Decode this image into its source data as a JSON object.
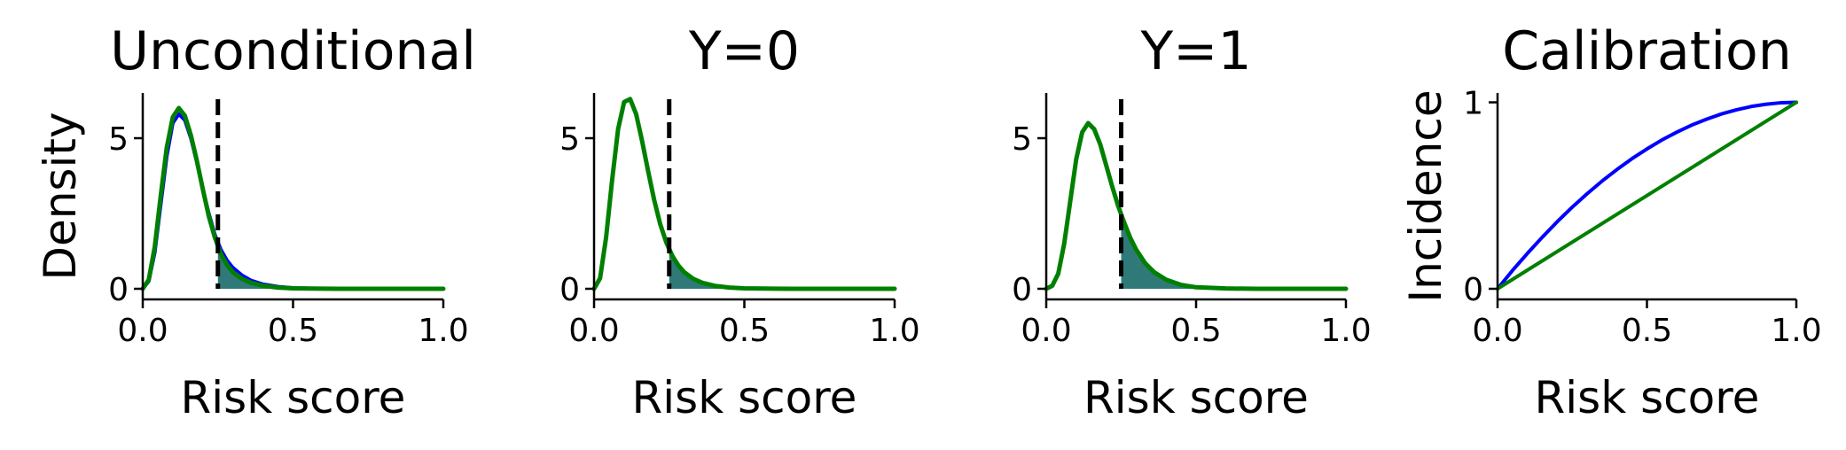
{
  "colors": {
    "series_a": "#0000ff",
    "series_b": "#008000",
    "fill": "#2f7a78",
    "threshold": "#000000",
    "axis": "#000000"
  },
  "chart_data": [
    {
      "type": "area",
      "title": "Unconditional",
      "xlabel": "Risk score",
      "ylabel": "Density",
      "xlim": [
        0,
        1.0
      ],
      "ylim": [
        0,
        6.5
      ],
      "xticks": [
        "0.0",
        "0.5",
        "1.0"
      ],
      "yticks": [
        "0",
        "5"
      ],
      "threshold": 0.25,
      "shade_from": 0.25,
      "grid": false,
      "series": [
        {
          "color": "blue",
          "x": [
            0,
            0.02,
            0.04,
            0.06,
            0.08,
            0.1,
            0.12,
            0.14,
            0.16,
            0.18,
            0.2,
            0.22,
            0.24,
            0.26,
            0.28,
            0.3,
            0.33,
            0.36,
            0.4,
            0.45,
            0.5,
            0.6,
            0.7,
            0.8,
            0.9,
            1.0
          ],
          "y": [
            0,
            0.25,
            1.2,
            2.8,
            4.4,
            5.5,
            5.8,
            5.6,
            5.0,
            4.2,
            3.3,
            2.5,
            1.8,
            1.3,
            0.95,
            0.7,
            0.45,
            0.28,
            0.15,
            0.07,
            0.03,
            0.005,
            0,
            0,
            0,
            0
          ]
        },
        {
          "color": "green",
          "x": [
            0,
            0.02,
            0.04,
            0.06,
            0.08,
            0.1,
            0.12,
            0.14,
            0.16,
            0.18,
            0.2,
            0.22,
            0.24,
            0.26,
            0.28,
            0.3,
            0.33,
            0.36,
            0.4,
            0.45,
            0.5,
            0.6,
            0.7,
            0.8,
            0.9,
            1.0
          ],
          "y": [
            0,
            0.3,
            1.4,
            3.1,
            4.7,
            5.7,
            6.0,
            5.75,
            5.1,
            4.25,
            3.3,
            2.4,
            1.7,
            1.15,
            0.8,
            0.55,
            0.33,
            0.2,
            0.1,
            0.04,
            0.015,
            0.003,
            0,
            0,
            0,
            0
          ]
        }
      ]
    },
    {
      "type": "area",
      "title": "Y=0",
      "xlabel": "Risk score",
      "ylabel": "",
      "xlim": [
        0,
        1.0
      ],
      "ylim": [
        0,
        6.5
      ],
      "xticks": [
        "0.0",
        "0.5",
        "1.0"
      ],
      "yticks": [
        "0",
        "5"
      ],
      "threshold": 0.25,
      "shade_from": 0.25,
      "grid": false,
      "series": [
        {
          "color": "blue",
          "x": [
            0,
            0.02,
            0.04,
            0.06,
            0.08,
            0.1,
            0.12,
            0.14,
            0.16,
            0.18,
            0.2,
            0.22,
            0.24,
            0.26,
            0.28,
            0.3,
            0.33,
            0.36,
            0.4,
            0.45,
            0.5,
            0.6,
            0.7,
            0.8,
            0.9,
            1.0
          ],
          "y": [
            0,
            0.35,
            1.7,
            3.6,
            5.3,
            6.2,
            6.3,
            5.8,
            4.9,
            3.9,
            2.95,
            2.15,
            1.55,
            1.1,
            0.78,
            0.55,
            0.33,
            0.2,
            0.1,
            0.04,
            0.015,
            0.003,
            0,
            0,
            0,
            0
          ]
        },
        {
          "color": "green",
          "x": [
            0,
            0.02,
            0.04,
            0.06,
            0.08,
            0.1,
            0.12,
            0.14,
            0.16,
            0.18,
            0.2,
            0.22,
            0.24,
            0.26,
            0.28,
            0.3,
            0.33,
            0.36,
            0.4,
            0.45,
            0.5,
            0.6,
            0.7,
            0.8,
            0.9,
            1.0
          ],
          "y": [
            0,
            0.35,
            1.7,
            3.6,
            5.3,
            6.2,
            6.3,
            5.8,
            4.9,
            3.9,
            2.95,
            2.15,
            1.55,
            1.1,
            0.78,
            0.55,
            0.33,
            0.2,
            0.1,
            0.04,
            0.015,
            0.003,
            0,
            0,
            0,
            0
          ]
        }
      ]
    },
    {
      "type": "area",
      "title": "Y=1",
      "xlabel": "Risk score",
      "ylabel": "",
      "xlim": [
        0,
        1.0
      ],
      "ylim": [
        0,
        6.5
      ],
      "xticks": [
        "0.0",
        "0.5",
        "1.0"
      ],
      "yticks": [
        "0",
        "5"
      ],
      "threshold": 0.25,
      "shade_from": 0.25,
      "grid": false,
      "series": [
        {
          "color": "blue",
          "x": [
            0,
            0.02,
            0.04,
            0.06,
            0.08,
            0.1,
            0.12,
            0.14,
            0.16,
            0.18,
            0.2,
            0.22,
            0.24,
            0.26,
            0.28,
            0.3,
            0.33,
            0.36,
            0.4,
            0.45,
            0.5,
            0.6,
            0.7,
            0.8,
            0.9,
            1.0
          ],
          "y": [
            0,
            0.1,
            0.5,
            1.5,
            2.9,
            4.3,
            5.2,
            5.5,
            5.3,
            4.8,
            4.1,
            3.4,
            2.75,
            2.2,
            1.7,
            1.3,
            0.85,
            0.55,
            0.3,
            0.13,
            0.05,
            0.01,
            0,
            0,
            0,
            0
          ]
        },
        {
          "color": "green",
          "x": [
            0,
            0.02,
            0.04,
            0.06,
            0.08,
            0.1,
            0.12,
            0.14,
            0.16,
            0.18,
            0.2,
            0.22,
            0.24,
            0.26,
            0.28,
            0.3,
            0.33,
            0.36,
            0.4,
            0.45,
            0.5,
            0.6,
            0.7,
            0.8,
            0.9,
            1.0
          ],
          "y": [
            0,
            0.1,
            0.5,
            1.5,
            2.9,
            4.3,
            5.2,
            5.5,
            5.3,
            4.8,
            4.1,
            3.4,
            2.75,
            2.2,
            1.7,
            1.3,
            0.85,
            0.55,
            0.3,
            0.13,
            0.05,
            0.01,
            0,
            0,
            0,
            0
          ]
        }
      ]
    },
    {
      "type": "line",
      "title": "Calibration",
      "xlabel": "Risk score",
      "ylabel": "Incidence",
      "xlim": [
        0,
        1.0
      ],
      "ylim": [
        0,
        1.05
      ],
      "xticks": [
        "0.0",
        "0.5",
        "1.0"
      ],
      "yticks": [
        "0",
        "1"
      ],
      "grid": false,
      "series": [
        {
          "color": "blue",
          "x": [
            0,
            0.05,
            0.1,
            0.15,
            0.2,
            0.25,
            0.3,
            0.35,
            0.4,
            0.45,
            0.5,
            0.55,
            0.6,
            0.65,
            0.7,
            0.75,
            0.8,
            0.85,
            0.9,
            0.95,
            1.0
          ],
          "y": [
            0,
            0.098,
            0.19,
            0.277,
            0.36,
            0.438,
            0.51,
            0.578,
            0.64,
            0.698,
            0.75,
            0.798,
            0.84,
            0.878,
            0.91,
            0.938,
            0.96,
            0.978,
            0.99,
            0.998,
            1.0
          ]
        },
        {
          "color": "green",
          "x": [
            0,
            1.0
          ],
          "y": [
            0,
            1.0
          ]
        }
      ]
    }
  ]
}
